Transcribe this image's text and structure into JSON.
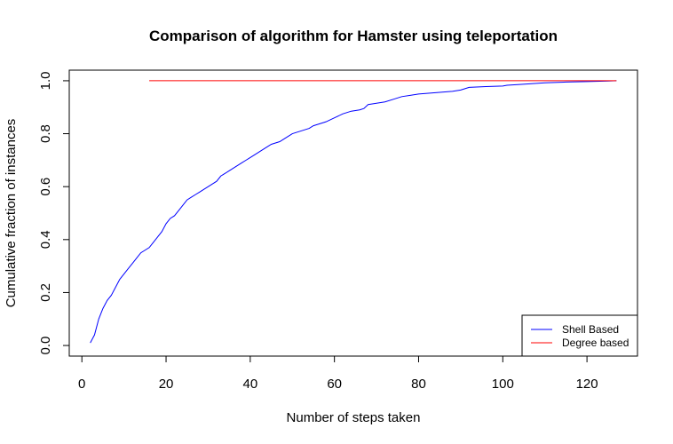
{
  "chart_data": {
    "type": "line",
    "title": "Comparison of algorithm for Hamster using teleportation",
    "xlabel": "Number of steps taken",
    "ylabel": "Cumulative fraction of instances",
    "xlim": [
      -3,
      132
    ],
    "ylim": [
      -0.04,
      1.04
    ],
    "xticks": [
      0,
      20,
      40,
      60,
      80,
      100,
      120
    ],
    "yticks": [
      0.0,
      0.2,
      0.4,
      0.6,
      0.8,
      1.0
    ],
    "xtick_labels": [
      "0",
      "20",
      "40",
      "60",
      "80",
      "100",
      "120"
    ],
    "ytick_labels": [
      "0.0",
      "0.2",
      "0.4",
      "0.6",
      "0.8",
      "1.0"
    ],
    "grid": false,
    "legend_position": "bottom-right",
    "series": [
      {
        "name": "Shell Based",
        "color": "#0000ff",
        "x": [
          2,
          3,
          4,
          5,
          6,
          7,
          8,
          9,
          10,
          11,
          12,
          13,
          14,
          15,
          16,
          17,
          18,
          19,
          20,
          21,
          22,
          23,
          24,
          25,
          26,
          27,
          28,
          29,
          30,
          31,
          32,
          33,
          34,
          35,
          36,
          37,
          38,
          39,
          40,
          41,
          42,
          43,
          44,
          45,
          46,
          47,
          48,
          49,
          50,
          52,
          54,
          55,
          56,
          58,
          60,
          62,
          63,
          64,
          66,
          67,
          68,
          70,
          72,
          74,
          76,
          78,
          80,
          84,
          88,
          90,
          91,
          92,
          96,
          100,
          101,
          104,
          108,
          110,
          115,
          120,
          125,
          127
        ],
        "y": [
          0.01,
          0.04,
          0.1,
          0.14,
          0.17,
          0.19,
          0.22,
          0.25,
          0.27,
          0.29,
          0.31,
          0.33,
          0.35,
          0.36,
          0.37,
          0.39,
          0.41,
          0.43,
          0.46,
          0.48,
          0.49,
          0.51,
          0.53,
          0.55,
          0.56,
          0.57,
          0.58,
          0.59,
          0.6,
          0.61,
          0.62,
          0.64,
          0.65,
          0.66,
          0.67,
          0.68,
          0.69,
          0.7,
          0.71,
          0.72,
          0.73,
          0.74,
          0.75,
          0.76,
          0.765,
          0.77,
          0.78,
          0.79,
          0.8,
          0.81,
          0.82,
          0.83,
          0.835,
          0.845,
          0.86,
          0.875,
          0.88,
          0.885,
          0.89,
          0.895,
          0.91,
          0.915,
          0.92,
          0.93,
          0.94,
          0.945,
          0.95,
          0.955,
          0.96,
          0.965,
          0.97,
          0.975,
          0.978,
          0.98,
          0.983,
          0.986,
          0.99,
          0.992,
          0.995,
          0.997,
          0.999,
          1.0
        ]
      },
      {
        "name": "Degree based",
        "color": "#ff0000",
        "x": [
          16,
          127
        ],
        "y": [
          1.0,
          1.0
        ]
      }
    ]
  }
}
